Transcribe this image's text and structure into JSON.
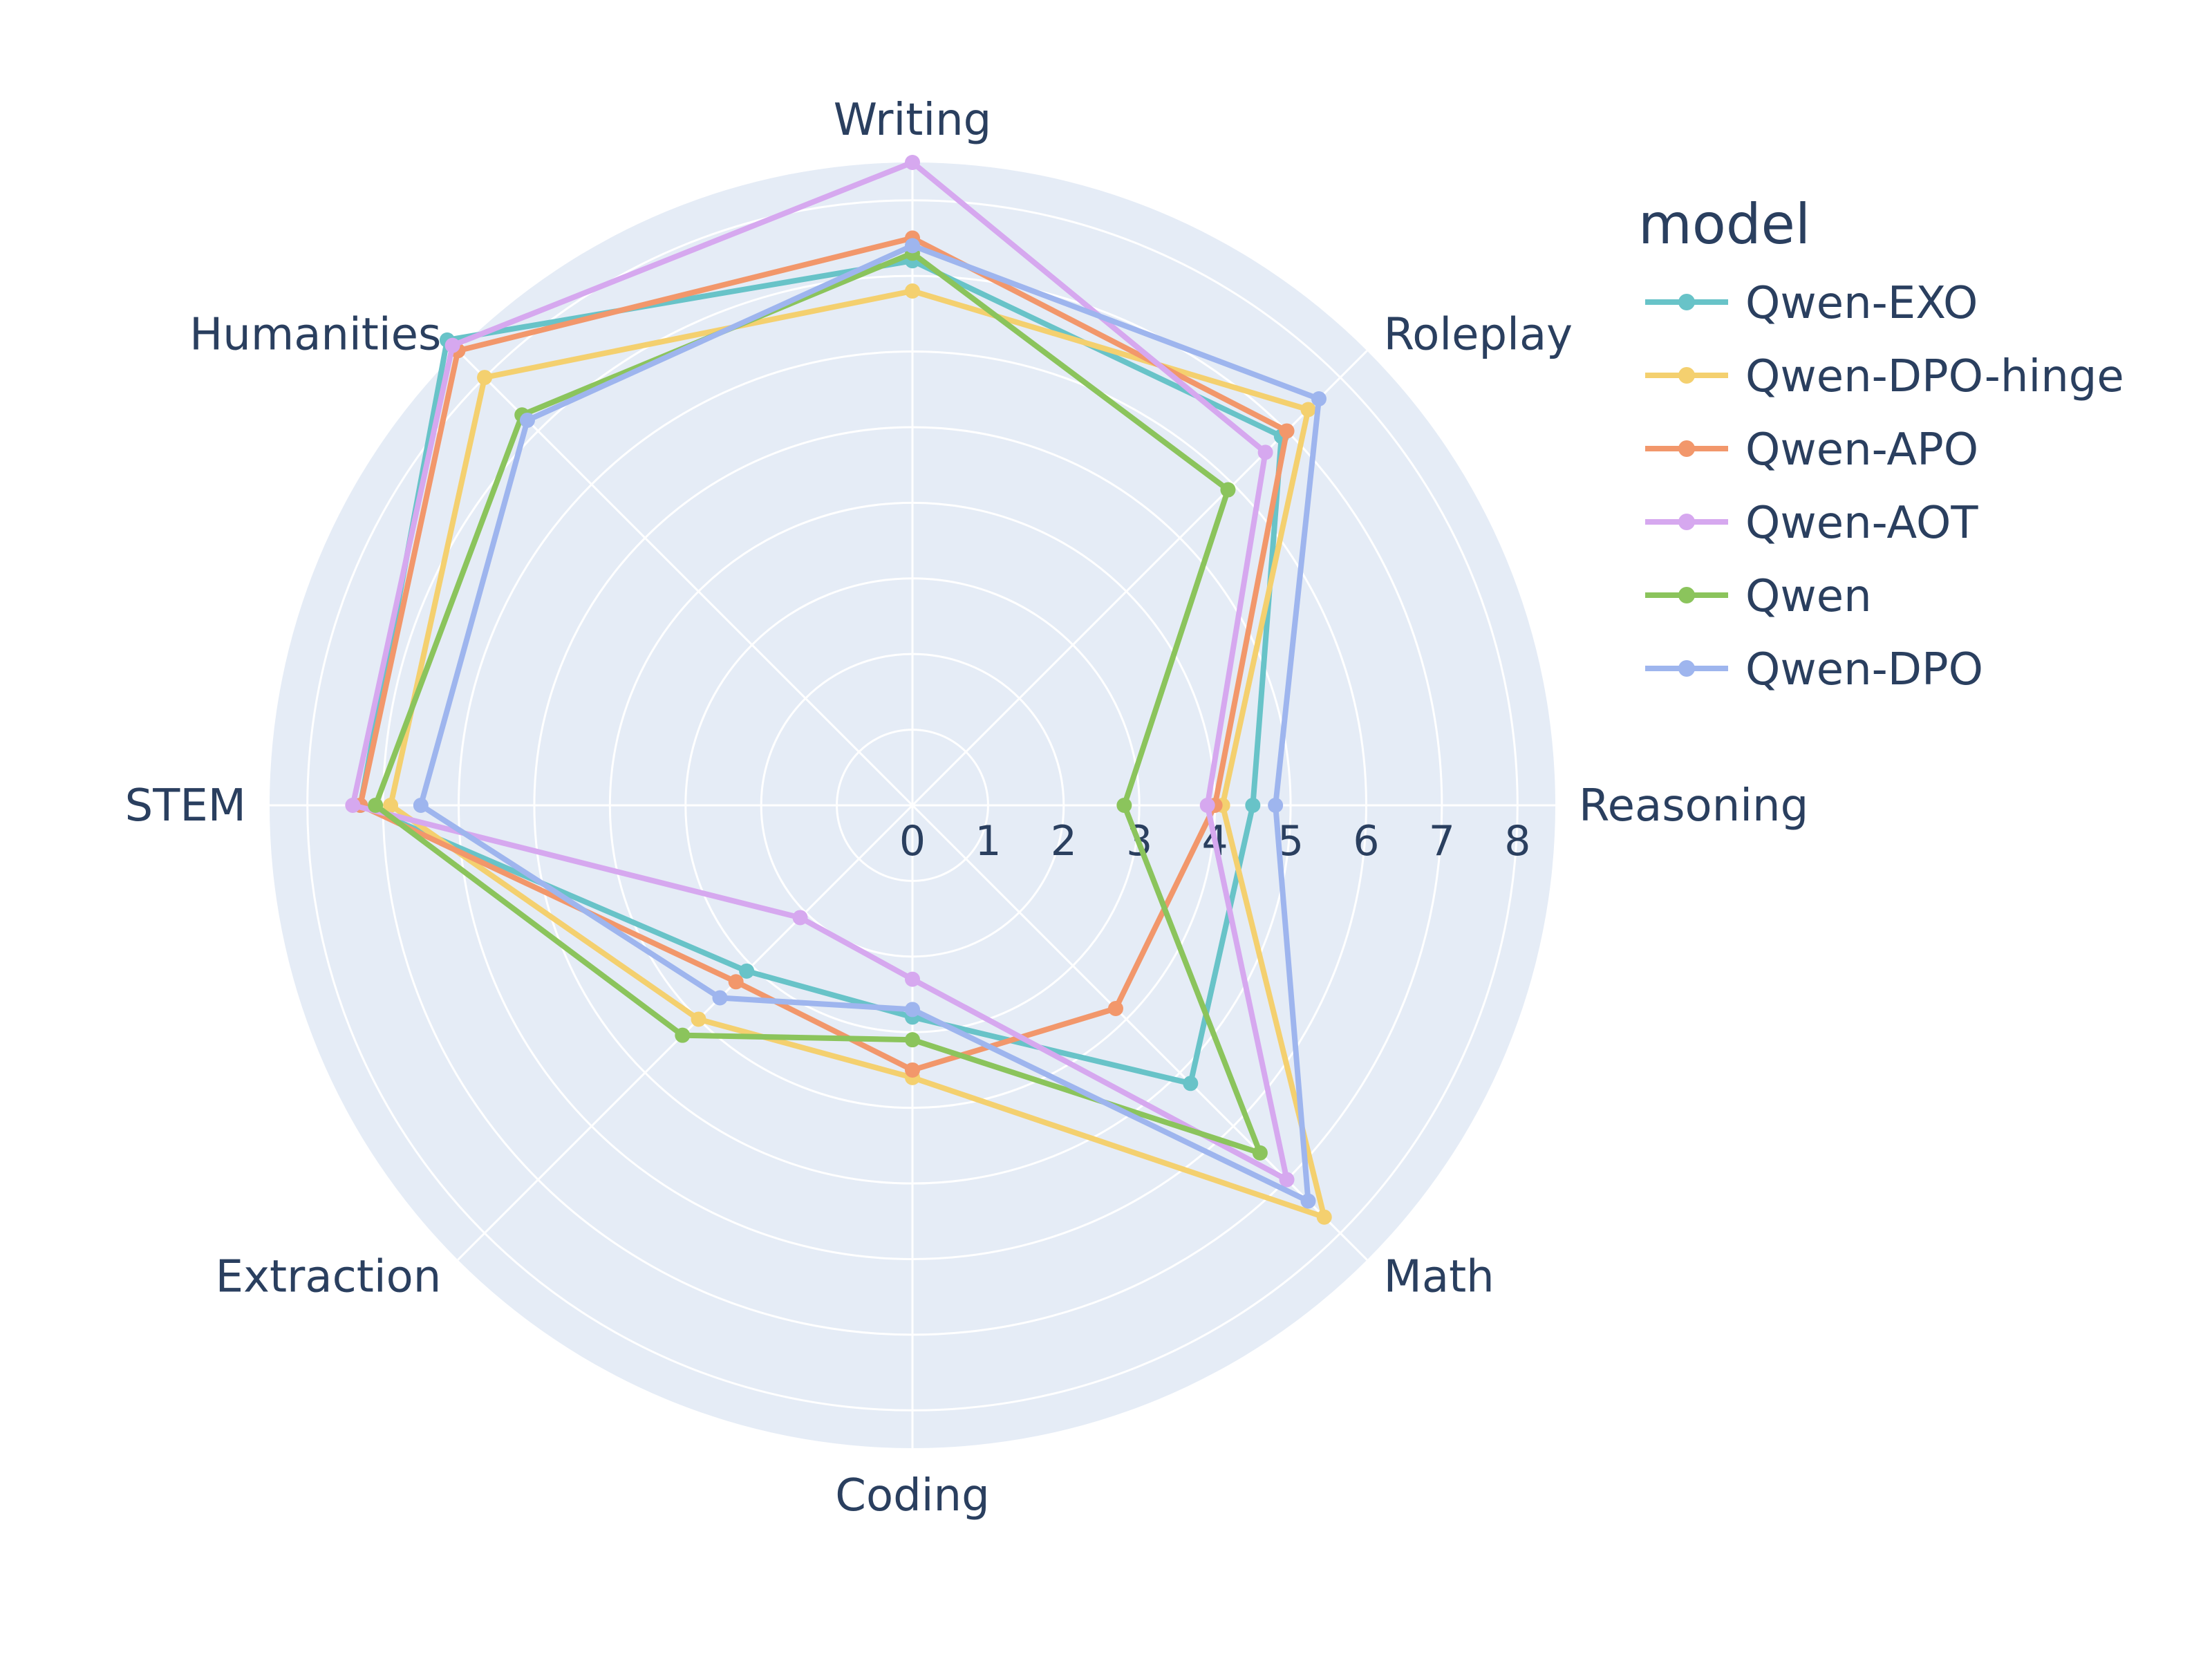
{
  "chart_data": {
    "type": "radar",
    "categories": [
      "Writing",
      "Roleplay",
      "Reasoning",
      "Math",
      "Coding",
      "Extraction",
      "STEM",
      "Humanities"
    ],
    "radial_range": [
      0,
      8.5
    ],
    "radial_ticks": [
      "0",
      "1",
      "2",
      "3",
      "4",
      "5",
      "6",
      "7",
      "8"
    ],
    "legend_title": "model",
    "legend_position": "right",
    "grid": true,
    "series": [
      {
        "name": "Qwen-EXO",
        "color": "#68c3c8",
        "values": [
          7.2,
          6.9,
          4.5,
          5.2,
          2.8,
          3.1,
          7.3,
          8.7
        ]
      },
      {
        "name": "Qwen-DPO-hinge",
        "color": "#f4d06f",
        "values": [
          6.8,
          7.4,
          4.1,
          7.7,
          3.6,
          4.0,
          6.9,
          8.0
        ]
      },
      {
        "name": "Qwen-APO",
        "color": "#f2976b",
        "values": [
          7.5,
          7.0,
          4.0,
          3.8,
          3.5,
          3.3,
          7.3,
          8.5
        ]
      },
      {
        "name": "Qwen-AOT",
        "color": "#d6a8ef",
        "values": [
          8.5,
          6.6,
          3.9,
          7.0,
          2.3,
          2.1,
          7.4,
          8.6
        ]
      },
      {
        "name": "Qwen",
        "color": "#8bc45c",
        "values": [
          7.3,
          5.9,
          2.8,
          6.5,
          3.1,
          4.3,
          7.1,
          7.3
        ]
      },
      {
        "name": "Qwen-DPO",
        "color": "#9eb5ee",
        "values": [
          7.4,
          7.6,
          4.8,
          7.4,
          2.7,
          3.6,
          6.5,
          7.2
        ]
      }
    ]
  }
}
